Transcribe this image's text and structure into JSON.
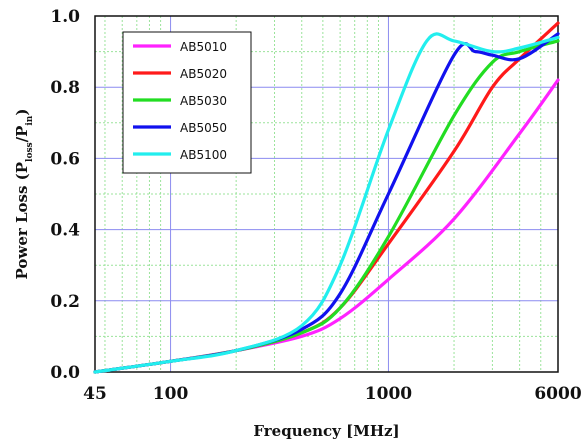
{
  "chart_data": {
    "type": "line",
    "xscale": "log",
    "xlabel": "Frequency [MHz]",
    "ylabel": "Power Loss (P",
    "ylabel_sub1": "loss",
    "ylabel_mid": "/P",
    "ylabel_sub2": "in",
    "ylabel_end": ")",
    "xlim": [
      45,
      6000
    ],
    "ylim": [
      0,
      1.0
    ],
    "xticks": [
      {
        "value": 45,
        "label": "45"
      },
      {
        "value": 100,
        "label": "100"
      },
      {
        "value": 1000,
        "label": "1000"
      },
      {
        "value": 6000,
        "label": "6000"
      }
    ],
    "yticks": [
      {
        "value": 0.0,
        "label": "0.0"
      },
      {
        "value": 0.2,
        "label": "0.2"
      },
      {
        "value": 0.4,
        "label": "0.4"
      },
      {
        "value": 0.6,
        "label": "0.6"
      },
      {
        "value": 0.8,
        "label": "0.8"
      },
      {
        "value": 1.0,
        "label": "1.0"
      }
    ],
    "grid": true,
    "legend_position": "top-left",
    "series": [
      {
        "name": "AB5010",
        "color": "#ff22ff",
        "x": [
          45,
          100,
          200,
          400,
          600,
          1000,
          2000,
          4000,
          6000
        ],
        "y": [
          0.0,
          0.03,
          0.06,
          0.1,
          0.15,
          0.26,
          0.43,
          0.67,
          0.82
        ]
      },
      {
        "name": "AB5020",
        "color": "#ff1a1a",
        "x": [
          45,
          100,
          200,
          400,
          600,
          1000,
          2000,
          3000,
          4000,
          6000
        ],
        "y": [
          0.0,
          0.03,
          0.06,
          0.11,
          0.18,
          0.36,
          0.62,
          0.8,
          0.88,
          0.98
        ]
      },
      {
        "name": "AB5030",
        "color": "#22dd22",
        "x": [
          45,
          100,
          200,
          400,
          600,
          1000,
          2000,
          3000,
          4000,
          6000
        ],
        "y": [
          0.0,
          0.03,
          0.06,
          0.11,
          0.18,
          0.38,
          0.72,
          0.87,
          0.9,
          0.93
        ]
      },
      {
        "name": "AB5050",
        "color": "#1111ee",
        "x": [
          45,
          100,
          200,
          400,
          600,
          1000,
          2000,
          2500,
          3000,
          4000,
          6000
        ],
        "y": [
          0.0,
          0.03,
          0.06,
          0.12,
          0.22,
          0.5,
          0.89,
          0.9,
          0.89,
          0.88,
          0.95
        ]
      },
      {
        "name": "AB5100",
        "color": "#22eeee",
        "x": [
          45,
          100,
          200,
          400,
          600,
          1000,
          1500,
          2000,
          3000,
          4000,
          6000
        ],
        "y": [
          0.0,
          0.03,
          0.06,
          0.13,
          0.3,
          0.68,
          0.93,
          0.93,
          0.9,
          0.91,
          0.94
        ]
      }
    ]
  }
}
